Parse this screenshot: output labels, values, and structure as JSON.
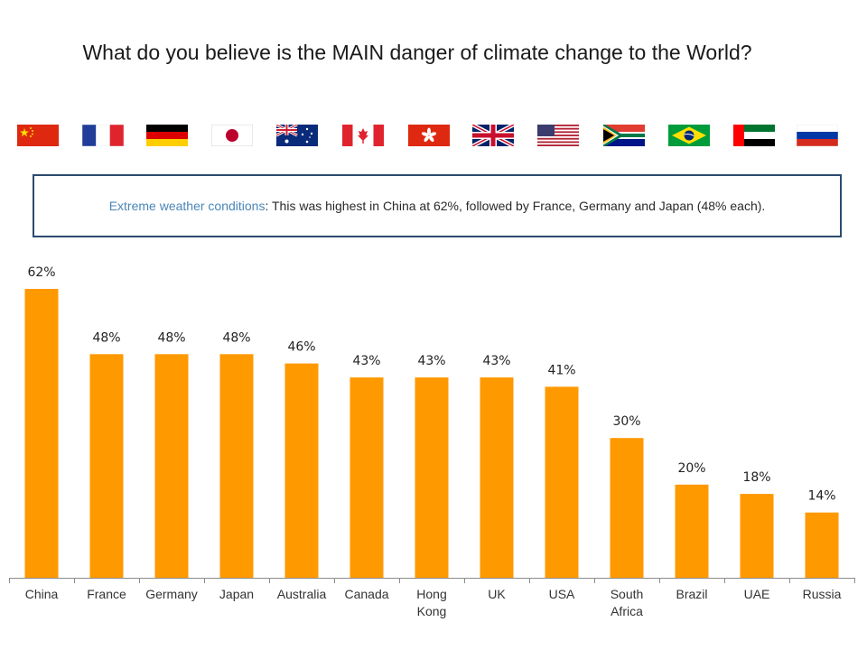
{
  "title": "What do you believe is the MAIN danger of climate change to the World?",
  "callout": {
    "lead": "Extreme weather conditions",
    "text": ": This was highest in China at 62%, followed by France, Germany and Japan (48% each)."
  },
  "flags": [
    "china",
    "france",
    "germany",
    "japan",
    "australia",
    "canada",
    "hong-kong",
    "uk",
    "usa",
    "south-africa",
    "brazil",
    "uae",
    "russia"
  ],
  "colors": {
    "bar": "#FF9900",
    "callout_border": "#2B4A6F",
    "callout_lead": "#4A86B8"
  },
  "chart_data": {
    "type": "bar",
    "title": "What do you believe is the MAIN danger of climate change to the World?",
    "categories": [
      "China",
      "France",
      "Germany",
      "Japan",
      "Australia",
      "Canada",
      "Hong Kong",
      "UK",
      "USA",
      "South Africa",
      "Brazil",
      "UAE",
      "Russia"
    ],
    "values": [
      62,
      48,
      48,
      48,
      46,
      43,
      43,
      43,
      41,
      30,
      20,
      18,
      14
    ],
    "value_labels": [
      "62%",
      "48%",
      "48%",
      "48%",
      "46%",
      "43%",
      "43%",
      "43%",
      "41%",
      "30%",
      "20%",
      "18%",
      "14%"
    ],
    "xlabel": "",
    "ylabel": "",
    "ylim": [
      0,
      62
    ],
    "grid": false,
    "legend": "none"
  }
}
